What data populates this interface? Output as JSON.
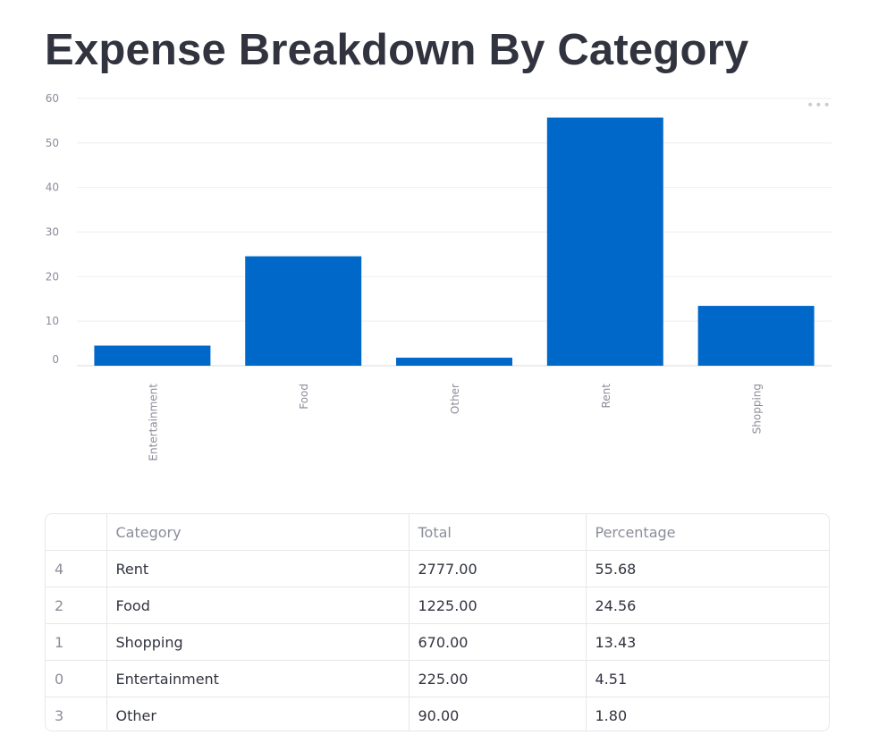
{
  "page": {
    "title": "Expense Breakdown By Category"
  },
  "chart_data": {
    "type": "bar",
    "title": "",
    "xlabel": "",
    "ylabel": "",
    "categories": [
      "Entertainment",
      "Food",
      "Other",
      "Rent",
      "Shopping"
    ],
    "values": [
      4.51,
      24.56,
      1.8,
      55.68,
      13.43
    ],
    "ylim": [
      0,
      60
    ],
    "yticks": [
      0,
      10,
      20,
      30,
      40,
      50,
      60
    ],
    "grid": true,
    "bar_color": "#0068c9",
    "x_tick_rotation": "vertical"
  },
  "chart_menu": {
    "icon": "more-horizontal-icon",
    "glyph": "•••"
  },
  "table": {
    "columns": [
      "",
      "Category",
      "Total",
      "Percentage"
    ],
    "rows": [
      {
        "index": "4",
        "category": "Rent",
        "total": "2777.00",
        "percentage": "55.68"
      },
      {
        "index": "2",
        "category": "Food",
        "total": "1225.00",
        "percentage": "24.56"
      },
      {
        "index": "1",
        "category": "Shopping",
        "total": "670.00",
        "percentage": "13.43"
      },
      {
        "index": "0",
        "category": "Entertainment",
        "total": "225.00",
        "percentage": "4.51"
      },
      {
        "index": "3",
        "category": "Other",
        "total": "90.00",
        "percentage": "1.80"
      }
    ]
  },
  "colors": {
    "text": "#31333f",
    "muted": "#8b8d99",
    "gridline": "#eceef1",
    "border": "#e6e7ea"
  }
}
